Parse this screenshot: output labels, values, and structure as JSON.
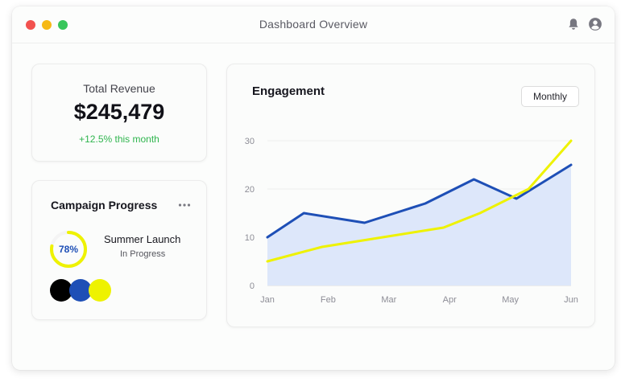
{
  "window": {
    "title": "Dashboard Overview",
    "controls": {
      "close_color": "#f2524f",
      "minimize_color": "#f6b916",
      "maximize_color": "#38c65b"
    },
    "icons": [
      "bell-icon",
      "user-icon"
    ]
  },
  "revenue": {
    "label": "Total Revenue",
    "value": "$245,479",
    "change": "+12.5% this month"
  },
  "campaign": {
    "title": "Campaign Progress",
    "menu_icon": "more-horizontal-icon",
    "progress_percent": 78,
    "progress_label": "78%",
    "name": "Summer Launch",
    "status": "In Progress",
    "swatches": [
      "#000000",
      "#1e4fb6",
      "#eef200"
    ]
  },
  "engagement": {
    "title": "Engagement",
    "period": "Monthly"
  },
  "chart_data": {
    "type": "line",
    "title": "Engagement",
    "categories": [
      "Jan",
      "Feb",
      "Mar",
      "Apr",
      "May",
      "Jun"
    ],
    "x": [
      0,
      1,
      2,
      2.5,
      3,
      3.5,
      4,
      4.5,
      5
    ],
    "x_labels_note": "",
    "ylim": [
      0,
      30
    ],
    "yticks": [
      0,
      10,
      20,
      30
    ],
    "grid": true,
    "series": [
      {
        "color": "#1e4fb6",
        "fill": "#dde7fa",
        "area": true,
        "points": [
          [
            0,
            10
          ],
          [
            0.6,
            15
          ],
          [
            1.6,
            13
          ],
          [
            2.6,
            17
          ],
          [
            3.4,
            22
          ],
          [
            4.1,
            18
          ],
          [
            5,
            25
          ]
        ]
      },
      {
        "color": "#eef200",
        "area": false,
        "points": [
          [
            0,
            5
          ],
          [
            0.9,
            8
          ],
          [
            1.9,
            10
          ],
          [
            2.9,
            12
          ],
          [
            3.5,
            15
          ],
          [
            4.3,
            20
          ],
          [
            5,
            30
          ]
        ]
      }
    ]
  }
}
